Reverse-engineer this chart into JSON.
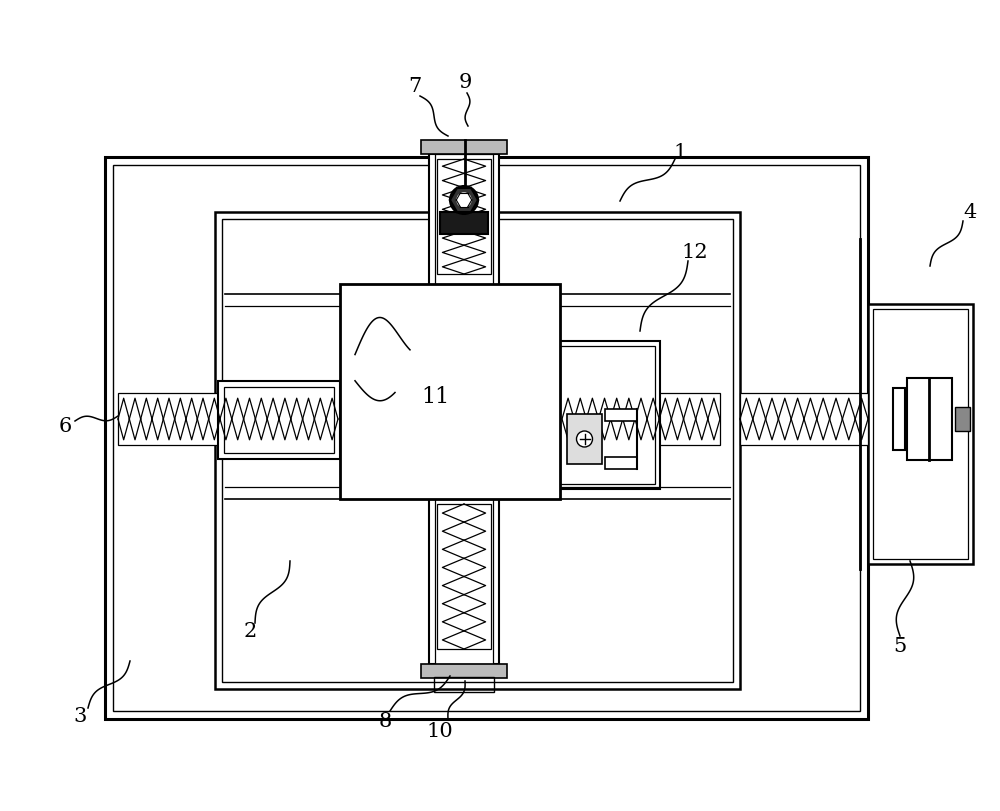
{
  "bg_color": "#ffffff",
  "line_color": "#000000",
  "fig_width": 10.0,
  "fig_height": 8.12
}
